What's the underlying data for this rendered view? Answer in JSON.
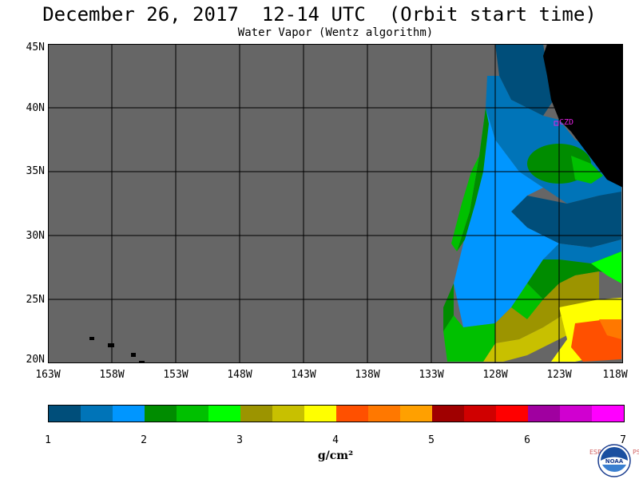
{
  "header": {
    "title": "December 26, 2017  12-14 UTC  (Orbit start time)",
    "subtitle": "Water Vapor (Wentz algorithm)"
  },
  "map": {
    "latitude_labels": [
      "45N",
      "40N",
      "35N",
      "30N",
      "25N",
      "20N"
    ],
    "longitude_labels": [
      "163W",
      "158W",
      "153W",
      "148W",
      "143W",
      "138W",
      "133W",
      "128W",
      "123W",
      "118W"
    ],
    "station_label": "CZD",
    "ocean_no_data_color": "#666666",
    "land_color": "#000000",
    "grid_color": "#000000",
    "station_color": "#e020e0"
  },
  "colorbar": {
    "tick_labels": [
      "1",
      "2",
      "3",
      "4",
      "5",
      "6",
      "7"
    ],
    "units": "g/cm²",
    "colors": [
      "#004e7a",
      "#0074b8",
      "#0096ff",
      "#008c00",
      "#00c000",
      "#00ff00",
      "#9c9400",
      "#c8c000",
      "#ffff00",
      "#ff5000",
      "#ff7800",
      "#ffa000",
      "#a00000",
      "#d00000",
      "#ff0000",
      "#a000a0",
      "#d000d0",
      "#ff00ff"
    ]
  },
  "logo": {
    "left_text": "ESRL",
    "right_text": "PSD",
    "badge_text": "NOAA"
  }
}
